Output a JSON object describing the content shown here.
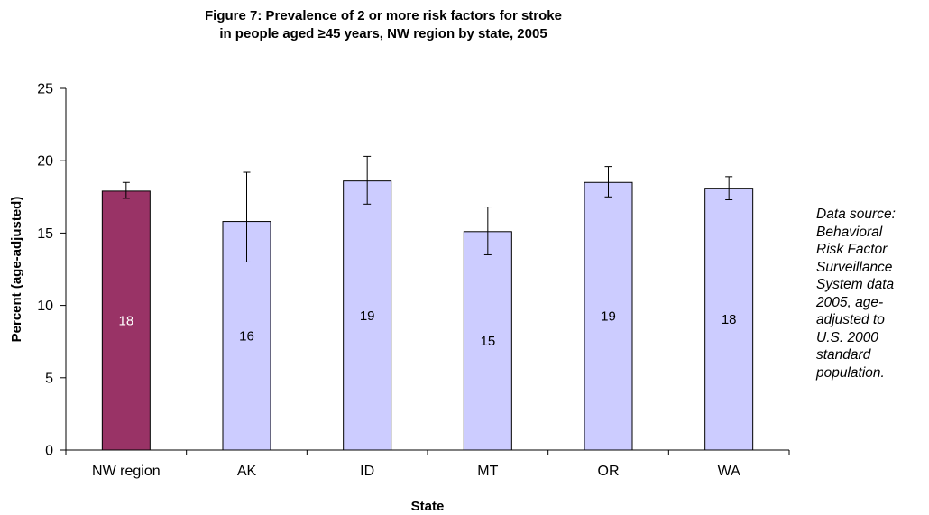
{
  "chart_data": {
    "type": "bar",
    "title_lines": [
      "Figure 7:  Prevalence of 2 or more risk factors for stroke",
      "in people aged ≥45 years, NW region by state, 2005"
    ],
    "xlabel": "State",
    "ylabel": "Percent (age-adjusted)",
    "ylim": [
      0,
      25
    ],
    "yticks": [
      0,
      5,
      10,
      15,
      20,
      25
    ],
    "ytick_labels": [
      "0",
      "5",
      "10",
      "15",
      "20",
      "25"
    ],
    "categories": [
      "NW region",
      "AK",
      "ID",
      "MT",
      "OR",
      "WA"
    ],
    "values": [
      17.9,
      15.8,
      18.6,
      15.1,
      18.5,
      18.1
    ],
    "data_labels": [
      "18",
      "16",
      "19",
      "15",
      "19",
      "18"
    ],
    "error_low": [
      17.4,
      13.0,
      17.0,
      13.5,
      17.5,
      17.3
    ],
    "error_high": [
      18.5,
      19.2,
      20.3,
      16.8,
      19.6,
      18.9
    ],
    "bar_colors": [
      "#993366",
      "#ccccff",
      "#ccccff",
      "#ccccff",
      "#ccccff",
      "#ccccff"
    ],
    "label_colors": [
      "#ffffff",
      "#000000",
      "#000000",
      "#000000",
      "#000000",
      "#000000"
    ],
    "grid": false,
    "legend": "none"
  },
  "source_note": "Data source:\nBehavioral\nRisk Factor\nSurveillance\nSystem data\n2005, age-\nadjusted to\nU.S. 2000\nstandard\npopulation."
}
